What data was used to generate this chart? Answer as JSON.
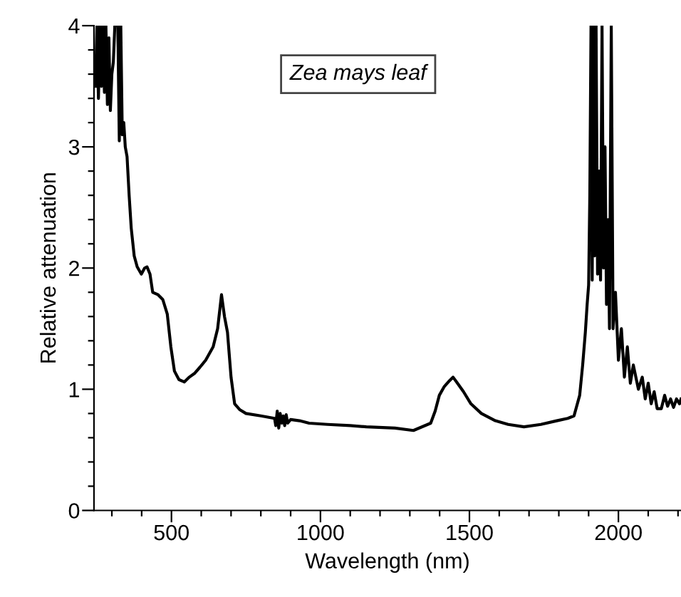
{
  "chart_data": {
    "type": "line",
    "xlabel": "Wavelength (nm)",
    "ylabel": "Relative attenuation",
    "annotations": [
      "Zea mays leaf"
    ],
    "xlim": [
      240,
      2210
    ],
    "ylim": [
      0,
      4
    ],
    "xticks": [
      {
        "value": 300,
        "label": null
      },
      {
        "value": 400,
        "label": null
      },
      500,
      {
        "value": 600,
        "label": null
      },
      {
        "value": 700,
        "label": null
      },
      {
        "value": 800,
        "label": null
      },
      {
        "value": 900,
        "label": null
      },
      1000,
      {
        "value": 1100,
        "label": null
      },
      {
        "value": 1200,
        "label": null
      },
      {
        "value": 1300,
        "label": null
      },
      {
        "value": 1400,
        "label": null
      },
      1500,
      {
        "value": 1600,
        "label": null
      },
      {
        "value": 1700,
        "label": null
      },
      {
        "value": 1800,
        "label": null
      },
      {
        "value": 1900,
        "label": null
      },
      2000,
      {
        "value": 2100,
        "label": null
      },
      {
        "value": 2200,
        "label": null
      }
    ],
    "yticks": [
      0,
      {
        "value": 0.2,
        "label": null
      },
      {
        "value": 0.4,
        "label": null
      },
      {
        "value": 0.6,
        "label": null
      },
      {
        "value": 0.8,
        "label": null
      },
      1,
      {
        "value": 1.2,
        "label": null
      },
      {
        "value": 1.4,
        "label": null
      },
      {
        "value": 1.6,
        "label": null
      },
      {
        "value": 1.8,
        "label": null
      },
      2,
      {
        "value": 2.2,
        "label": null
      },
      {
        "value": 2.4,
        "label": null
      },
      {
        "value": 2.6,
        "label": null
      },
      {
        "value": 2.8,
        "label": null
      },
      3,
      {
        "value": 3.2,
        "label": null
      },
      {
        "value": 3.4,
        "label": null
      },
      {
        "value": 3.6,
        "label": null
      },
      {
        "value": 3.8,
        "label": null
      },
      4
    ],
    "grid": false,
    "marker": "none",
    "line_style": "solid",
    "series": [
      {
        "color": "#000000",
        "x": [
          245,
          250,
          255,
          260,
          265,
          270,
          275,
          280,
          285,
          290,
          295,
          300,
          305,
          310,
          315,
          320,
          325,
          330,
          335,
          340,
          345,
          351,
          358,
          365,
          375,
          385,
          399,
          410,
          418,
          428,
          437,
          455,
          471,
          486,
          498,
          510,
          525,
          543,
          560,
          577,
          595,
          615,
          640,
          655,
          668,
          678,
          688,
          700,
          712,
          730,
          750,
          800,
          846,
          850,
          855,
          860,
          865,
          870,
          875,
          880,
          885,
          890,
          900,
          930,
          962,
          1024,
          1100,
          1154,
          1250,
          1312,
          1370,
          1385,
          1399,
          1415,
          1433,
          1445,
          1457,
          1480,
          1505,
          1540,
          1587,
          1630,
          1683,
          1740,
          1793,
          1830,
          1851,
          1870,
          1880,
          1889,
          1895,
          1900,
          1904,
          1908,
          1912,
          1916,
          1920,
          1925,
          1930,
          1935,
          1940,
          1945,
          1950,
          1955,
          1960,
          1965,
          1970,
          1976,
          1982,
          1990,
          2000,
          2010,
          2020,
          2030,
          2040,
          2050,
          2067,
          2080,
          2090,
          2100,
          2110,
          2120,
          2130,
          2144,
          2155,
          2165,
          2175,
          2185,
          2195,
          2205,
          2210
        ],
        "values": [
          3.5,
          4,
          3.4,
          4,
          3.5,
          4,
          3.45,
          4,
          3.35,
          3.9,
          3.3,
          3.6,
          3.7,
          4,
          4,
          4,
          3.05,
          4,
          3.1,
          3.2,
          3.0,
          2.92,
          2.6,
          2.33,
          2.1,
          2.01,
          1.95,
          2.0,
          2.01,
          1.95,
          1.8,
          1.78,
          1.74,
          1.62,
          1.35,
          1.15,
          1.08,
          1.06,
          1.1,
          1.13,
          1.18,
          1.24,
          1.35,
          1.5,
          1.78,
          1.6,
          1.47,
          1.1,
          0.88,
          0.83,
          0.8,
          0.78,
          0.76,
          0.7,
          0.82,
          0.68,
          0.8,
          0.72,
          0.78,
          0.7,
          0.79,
          0.72,
          0.75,
          0.74,
          0.72,
          0.71,
          0.7,
          0.69,
          0.68,
          0.66,
          0.72,
          0.82,
          0.95,
          1.02,
          1.07,
          1.1,
          1.06,
          0.98,
          0.88,
          0.8,
          0.74,
          0.71,
          0.69,
          0.71,
          0.74,
          0.76,
          0.78,
          0.95,
          1.2,
          1.47,
          1.7,
          1.86,
          2.6,
          4,
          1.9,
          4,
          2.1,
          4,
          1.95,
          2.8,
          1.9,
          4,
          2.0,
          3.0,
          1.7,
          2.4,
          1.5,
          4,
          1.5,
          1.8,
          1.24,
          1.5,
          1.1,
          1.35,
          1.05,
          1.2,
          1.0,
          1.1,
          0.92,
          1.05,
          0.88,
          0.98,
          0.84,
          0.84,
          0.95,
          0.86,
          0.92,
          0.85,
          0.92,
          0.88,
          0.92
        ]
      }
    ]
  }
}
